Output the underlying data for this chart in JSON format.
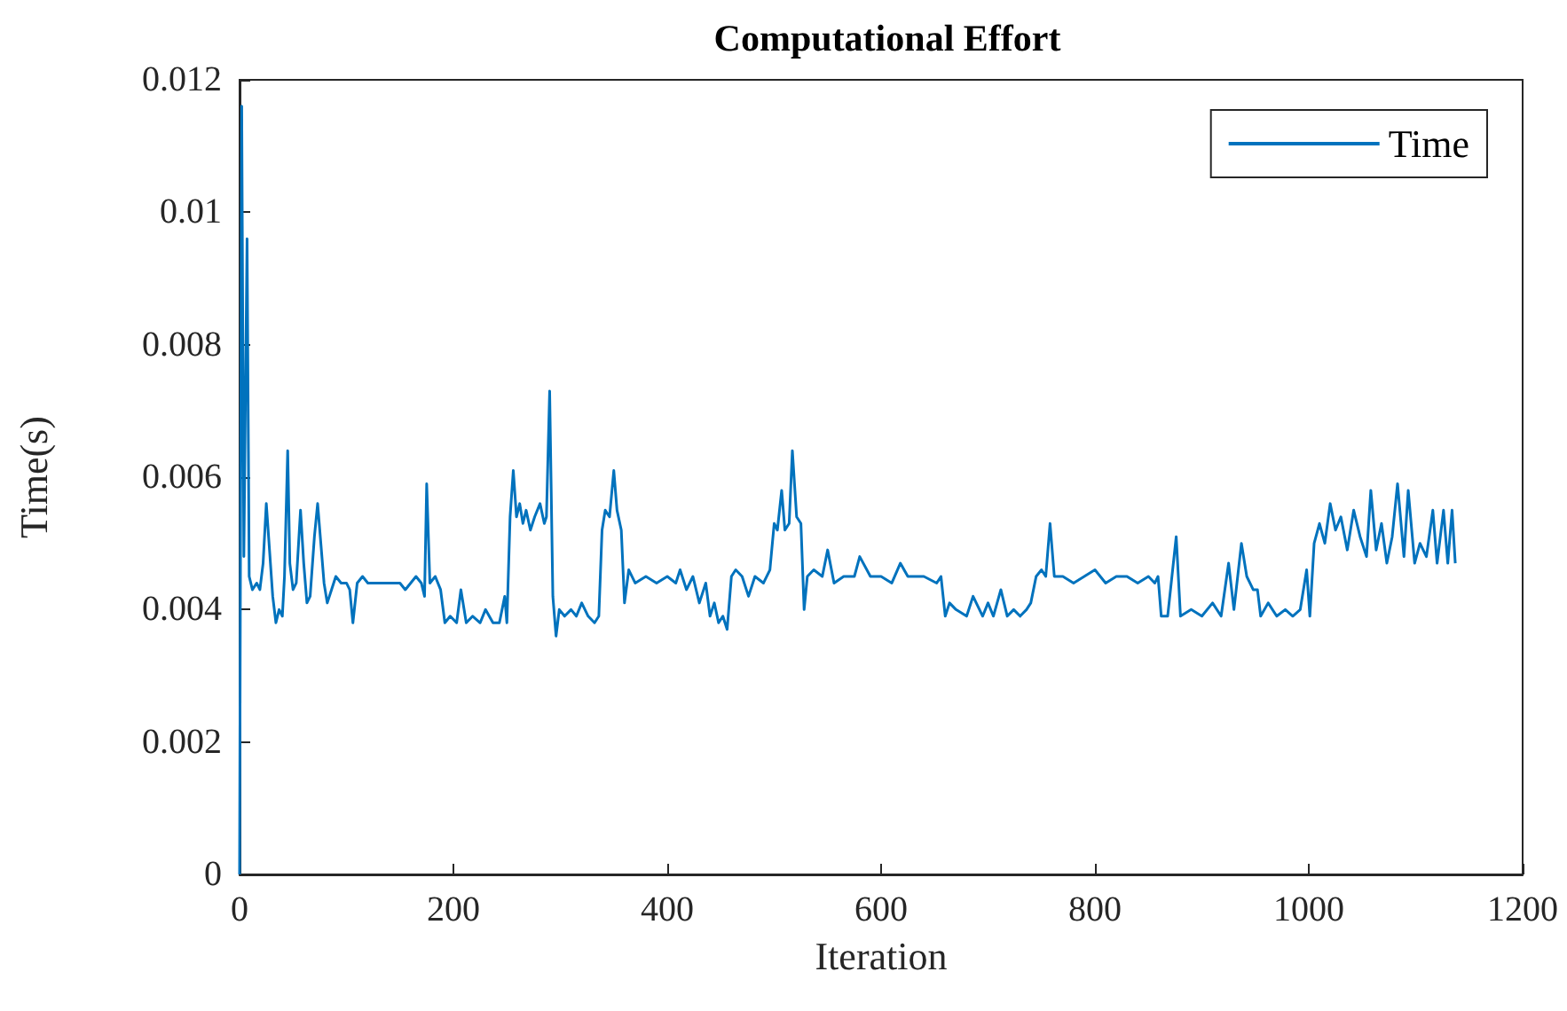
{
  "chart_data": {
    "type": "line",
    "title": "Computational Effort",
    "xlabel": "Iteration",
    "ylabel": "Time(s)",
    "xlim": [
      0,
      1200
    ],
    "xticks": [
      0,
      200,
      400,
      600,
      800,
      1000,
      1200
    ],
    "ylim": [
      0,
      0.012
    ],
    "yticks": [
      0,
      0.002,
      0.004,
      0.006,
      0.008,
      0.01,
      0.012
    ],
    "grid": false,
    "legend": "top right",
    "marker": "none",
    "line_style": "solid",
    "series": [
      {
        "name": "Time",
        "color": "#0072bd",
        "x": [
          0,
          2,
          4,
          7,
          9,
          12,
          16,
          19,
          22,
          25,
          28,
          31,
          34,
          37,
          40,
          42,
          45,
          47,
          50,
          53,
          57,
          60,
          63,
          66,
          70,
          73,
          76,
          79,
          82,
          86,
          90,
          95,
          100,
          103,
          106,
          110,
          115,
          120,
          130,
          140,
          150,
          155,
          160,
          165,
          170,
          173,
          175,
          178,
          183,
          188,
          192,
          197,
          203,
          207,
          212,
          218,
          225,
          230,
          237,
          243,
          248,
          250,
          253,
          256,
          259,
          262,
          265,
          268,
          272,
          276,
          281,
          285,
          287,
          290,
          293,
          296,
          299,
          304,
          310,
          315,
          320,
          326,
          332,
          336,
          339,
          342,
          346,
          350,
          353,
          357,
          360,
          364,
          370,
          380,
          390,
          400,
          408,
          412,
          418,
          424,
          430,
          436,
          440,
          444,
          448,
          452,
          456,
          460,
          464,
          470,
          476,
          482,
          490,
          496,
          500,
          503,
          507,
          510,
          514,
          517,
          521,
          525,
          528,
          531,
          537,
          545,
          550,
          556,
          565,
          575,
          580,
          590,
          600,
          610,
          618,
          625,
          634,
          640,
          652,
          656,
          660,
          664,
          670,
          680,
          686,
          695,
          700,
          705,
          712,
          718,
          724,
          730,
          736,
          740,
          745,
          750,
          754,
          758,
          762,
          770,
          780,
          790,
          800,
          810,
          820,
          830,
          840,
          850,
          856,
          859,
          862,
          868,
          876,
          880,
          890,
          900,
          910,
          918,
          925,
          930,
          937,
          942,
          948,
          952,
          955,
          962,
          970,
          978,
          985,
          992,
          998,
          1001,
          1005,
          1010,
          1015,
          1020,
          1025,
          1030,
          1036,
          1042,
          1048,
          1054,
          1058,
          1063,
          1068,
          1073,
          1078,
          1083,
          1089,
          1093,
          1099,
          1104,
          1110,
          1116,
          1120,
          1126,
          1130,
          1134,
          1137
        ],
        "values": [
          0,
          0.0116,
          0.0048,
          0.0096,
          0.0045,
          0.0043,
          0.0044,
          0.0043,
          0.0047,
          0.0056,
          0.0049,
          0.0042,
          0.0038,
          0.004,
          0.0039,
          0.0045,
          0.0064,
          0.0047,
          0.0043,
          0.0044,
          0.0055,
          0.0047,
          0.0041,
          0.0042,
          0.0051,
          0.0056,
          0.005,
          0.0044,
          0.0041,
          0.0043,
          0.0045,
          0.0044,
          0.0044,
          0.0043,
          0.0038,
          0.0044,
          0.0045,
          0.0044,
          0.0044,
          0.0044,
          0.0044,
          0.0043,
          0.0044,
          0.0045,
          0.0044,
          0.0042,
          0.0059,
          0.0044,
          0.0045,
          0.0043,
          0.0038,
          0.0039,
          0.0038,
          0.0043,
          0.0038,
          0.0039,
          0.0038,
          0.004,
          0.0038,
          0.0038,
          0.0042,
          0.0038,
          0.0054,
          0.0061,
          0.0054,
          0.0056,
          0.0053,
          0.0055,
          0.0052,
          0.0054,
          0.0056,
          0.0053,
          0.0054,
          0.0073,
          0.0042,
          0.0036,
          0.004,
          0.0039,
          0.004,
          0.0039,
          0.0041,
          0.0039,
          0.0038,
          0.0039,
          0.0052,
          0.0055,
          0.0054,
          0.0061,
          0.0055,
          0.0052,
          0.0041,
          0.0046,
          0.0044,
          0.0045,
          0.0044,
          0.0045,
          0.0044,
          0.0046,
          0.0043,
          0.0045,
          0.0041,
          0.0044,
          0.0039,
          0.0041,
          0.0038,
          0.0039,
          0.0037,
          0.0045,
          0.0046,
          0.0045,
          0.0042,
          0.0045,
          0.0044,
          0.0046,
          0.0053,
          0.0052,
          0.0058,
          0.0052,
          0.0053,
          0.0064,
          0.0054,
          0.0053,
          0.004,
          0.0045,
          0.0046,
          0.0045,
          0.0049,
          0.0044,
          0.0045,
          0.0045,
          0.0048,
          0.0045,
          0.0045,
          0.0044,
          0.0047,
          0.0045,
          0.0045,
          0.0045,
          0.0044,
          0.0045,
          0.0039,
          0.0041,
          0.004,
          0.0039,
          0.0042,
          0.0039,
          0.0041,
          0.0039,
          0.0043,
          0.0039,
          0.004,
          0.0039,
          0.004,
          0.0041,
          0.0045,
          0.0046,
          0.0045,
          0.0053,
          0.0045,
          0.0045,
          0.0044,
          0.0045,
          0.0046,
          0.0044,
          0.0045,
          0.0045,
          0.0044,
          0.0045,
          0.0044,
          0.0045,
          0.0039,
          0.0039,
          0.0051,
          0.0039,
          0.004,
          0.0039,
          0.0041,
          0.0039,
          0.0047,
          0.004,
          0.005,
          0.0045,
          0.0043,
          0.0043,
          0.0039,
          0.0041,
          0.0039,
          0.004,
          0.0039,
          0.004,
          0.0046,
          0.0039,
          0.005,
          0.0053,
          0.005,
          0.0056,
          0.0052,
          0.0054,
          0.0049,
          0.0055,
          0.0051,
          0.0048,
          0.0058,
          0.0049,
          0.0053,
          0.0047,
          0.0051,
          0.0059,
          0.0048,
          0.0058,
          0.0047,
          0.005,
          0.0048,
          0.0055,
          0.0047,
          0.0055,
          0.0047,
          0.0055,
          0.0047
        ]
      }
    ]
  }
}
